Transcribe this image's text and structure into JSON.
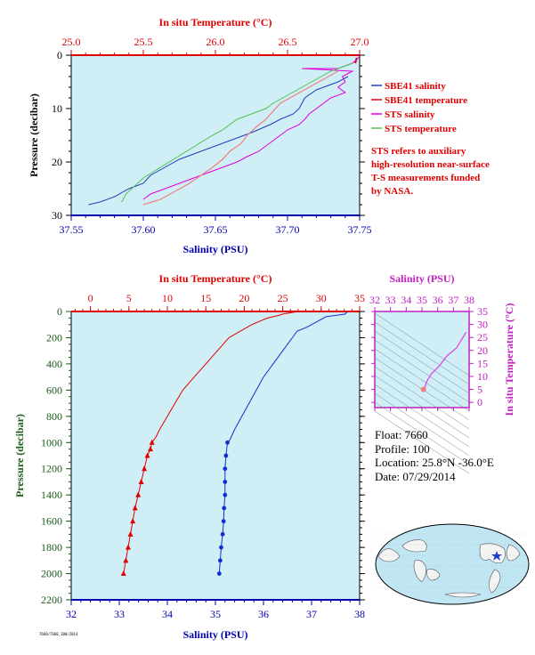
{
  "chart_data": [
    {
      "type": "line",
      "title": "",
      "top_axis": {
        "label": "In situ Temperature (°C)",
        "range": [
          25.0,
          27.0
        ],
        "ticks": [
          "25.0",
          "25.5",
          "26.0",
          "26.5",
          "27.0"
        ],
        "color": "#e00000"
      },
      "bottom_axis": {
        "label": "Salinity (PSU)",
        "range": [
          37.55,
          37.75
        ],
        "ticks": [
          "37.55",
          "37.60",
          "37.65",
          "37.70",
          "37.75"
        ],
        "color": "#0000b0"
      },
      "ylabel": "Pressure (decibar)",
      "ylim": [
        30,
        0
      ],
      "yticks": [
        "0",
        "10",
        "20",
        "30"
      ],
      "legend_position": "right",
      "series": [
        {
          "name": "SBE41 salinity",
          "color": "#1f3fbf",
          "axis": "salinity",
          "points": [
            [
              37.742,
              4
            ],
            [
              37.735,
              5
            ],
            [
              37.72,
              6.5
            ],
            [
              37.712,
              8
            ],
            [
              37.708,
              10
            ],
            [
              37.704,
              11
            ],
            [
              37.695,
              12
            ],
            [
              37.688,
              13
            ],
            [
              37.675,
              14.5
            ],
            [
              37.665,
              15.5
            ],
            [
              37.655,
              16.5
            ],
            [
              37.645,
              17.5
            ],
            [
              37.635,
              18.5
            ],
            [
              37.625,
              19.5
            ],
            [
              37.615,
              21
            ],
            [
              37.605,
              22.5
            ],
            [
              37.6,
              24
            ],
            [
              37.59,
              25
            ],
            [
              37.58,
              26.5
            ],
            [
              37.57,
              27.5
            ],
            [
              37.562,
              28
            ]
          ]
        },
        {
          "name": "SBE41 temperature",
          "color": "#e00000",
          "axis": "temperature",
          "points": [
            [
              26.98,
              0.5
            ],
            [
              26.97,
              1.5
            ]
          ]
        },
        {
          "name": "STS salinity",
          "color": "#e000e0",
          "axis": "salinity",
          "points": [
            [
              37.75,
              0.2
            ],
            [
              37.748,
              0.8
            ],
            [
              37.745,
              1.5
            ],
            [
              37.74,
              2
            ],
            [
              37.735,
              2.5
            ],
            [
              37.71,
              2.5
            ],
            [
              37.745,
              3
            ],
            [
              37.738,
              4
            ],
            [
              37.74,
              5
            ],
            [
              37.735,
              6
            ],
            [
              37.74,
              7
            ],
            [
              37.73,
              8
            ],
            [
              37.725,
              9
            ],
            [
              37.72,
              10
            ],
            [
              37.715,
              11
            ],
            [
              37.712,
              12
            ],
            [
              37.708,
              13
            ],
            [
              37.7,
              14
            ],
            [
              37.695,
              15
            ],
            [
              37.69,
              16
            ],
            [
              37.685,
              17
            ],
            [
              37.68,
              18
            ],
            [
              37.672,
              19
            ],
            [
              37.665,
              20
            ],
            [
              37.655,
              21
            ],
            [
              37.645,
              22
            ],
            [
              37.635,
              23
            ],
            [
              37.625,
              24
            ],
            [
              37.615,
              25
            ],
            [
              37.605,
              26
            ],
            [
              37.6,
              27
            ]
          ]
        },
        {
          "name": "STS temperature",
          "color": "#4ec24e",
          "axis": "salinity",
          "points": [
            [
              37.745,
              1.5
            ],
            [
              37.73,
              3
            ],
            [
              37.72,
              4.5
            ],
            [
              37.71,
              6
            ],
            [
              37.7,
              7.5
            ],
            [
              37.69,
              9
            ],
            [
              37.685,
              10
            ],
            [
              37.675,
              11
            ],
            [
              37.665,
              12
            ],
            [
              37.66,
              13
            ],
            [
              37.655,
              14
            ],
            [
              37.648,
              15
            ],
            [
              37.642,
              16
            ],
            [
              37.636,
              17
            ],
            [
              37.63,
              18
            ],
            [
              37.624,
              19
            ],
            [
              37.618,
              20
            ],
            [
              37.612,
              21
            ],
            [
              37.606,
              22
            ],
            [
              37.6,
              23
            ],
            [
              37.596,
              24
            ],
            [
              37.592,
              25
            ],
            [
              37.588,
              26
            ],
            [
              37.585,
              27.5
            ]
          ]
        }
      ]
    },
    {
      "type": "line",
      "title": "",
      "top_axis": {
        "label": "In situ Temperature (°C)",
        "range": [
          -2.5,
          35
        ],
        "ticks": [
          "0",
          "5",
          "10",
          "15",
          "20",
          "25",
          "30",
          "35"
        ],
        "color": "#e00000"
      },
      "bottom_axis": {
        "label": "Salinity (PSU)",
        "range": [
          32,
          38
        ],
        "ticks": [
          "32",
          "33",
          "34",
          "35",
          "36",
          "37",
          "38"
        ],
        "color": "#0000b0"
      },
      "ylabel": "Pressure (decibar)",
      "ylim": [
        2200,
        0
      ],
      "yticks": [
        "0",
        "200",
        "400",
        "600",
        "800",
        "1000",
        "1200",
        "1400",
        "1600",
        "1800",
        "2000",
        "2200"
      ],
      "series": [
        {
          "name": "temperature",
          "color": "#e00000",
          "axis": "temperature",
          "points": [
            [
              27,
              0
            ],
            [
              26,
              10
            ],
            [
              25,
              20
            ],
            [
              24.5,
              30
            ],
            [
              23,
              50
            ],
            [
              21,
              100
            ],
            [
              19.5,
              150
            ],
            [
              18,
              200
            ],
            [
              16.5,
              300
            ],
            [
              15,
              400
            ],
            [
              13.5,
              500
            ],
            [
              12,
              600
            ],
            [
              11,
              700
            ],
            [
              10,
              800
            ],
            [
              9,
              900
            ],
            [
              8.5,
              960
            ],
            [
              8,
              1000
            ],
            [
              7.8,
              1050
            ],
            [
              7.4,
              1100
            ],
            [
              7,
              1200
            ],
            [
              6.6,
              1300
            ],
            [
              6.2,
              1400
            ],
            [
              5.8,
              1500
            ],
            [
              5.5,
              1600
            ],
            [
              5.2,
              1700
            ],
            [
              4.9,
              1800
            ],
            [
              4.6,
              1900
            ],
            [
              4.3,
              2000
            ]
          ],
          "marker_range": [
            1000,
            2000
          ]
        },
        {
          "name": "salinity",
          "color": "#1030d0",
          "axis": "salinity",
          "points": [
            [
              37.75,
              0
            ],
            [
              37.7,
              20
            ],
            [
              37.3,
              40
            ],
            [
              37.1,
              80
            ],
            [
              36.9,
              120
            ],
            [
              36.7,
              150
            ],
            [
              36.6,
              200
            ],
            [
              36.4,
              300
            ],
            [
              36.2,
              400
            ],
            [
              36.0,
              500
            ],
            [
              35.85,
              600
            ],
            [
              35.7,
              700
            ],
            [
              35.55,
              800
            ],
            [
              35.4,
              900
            ],
            [
              35.3,
              980
            ],
            [
              35.25,
              1000
            ],
            [
              35.22,
              1100
            ],
            [
              35.2,
              1200
            ],
            [
              35.2,
              1300
            ],
            [
              35.2,
              1400
            ],
            [
              35.18,
              1500
            ],
            [
              35.17,
              1600
            ],
            [
              35.15,
              1700
            ],
            [
              35.12,
              1800
            ],
            [
              35.1,
              1900
            ],
            [
              35.08,
              2000
            ]
          ],
          "marker_range": [
            1000,
            2000
          ]
        }
      ]
    },
    {
      "type": "scatter",
      "title": "",
      "top_axis": {
        "label": "Salinity (PSU)",
        "range": [
          32,
          38
        ],
        "ticks": [
          "32",
          "33",
          "34",
          "35",
          "36",
          "37",
          "38"
        ],
        "color": "#c020c0"
      },
      "right_axis": {
        "label": "In situ Temperature (°C)",
        "range": [
          -2,
          35
        ],
        "ticks": [
          "0",
          "5",
          "10",
          "15",
          "20",
          "25",
          "30",
          "35"
        ],
        "color": "#c020c0"
      },
      "series": [
        {
          "name": "T-S",
          "color": "#e040e0",
          "points": [
            [
              37.8,
              27
            ],
            [
              37.2,
              21
            ],
            [
              36.6,
              18
            ],
            [
              36.1,
              14
            ],
            [
              35.6,
              11
            ],
            [
              35.3,
              8
            ],
            [
              35.2,
              6
            ],
            [
              35.1,
              5
            ]
          ]
        }
      ]
    }
  ],
  "info": {
    "float": "Float:  7660",
    "profile": "Profile:  100",
    "location": "Location:  25.8°N  -36.0°E",
    "date": "Date:  07/29/2014"
  },
  "legend": {
    "items": [
      {
        "label": "SBE41 salinity",
        "color": "#1f3fbf"
      },
      {
        "label": "SBE41 temperature",
        "color": "#e00000"
      },
      {
        "label": "STS salinity",
        "color": "#e000e0"
      },
      {
        "label": "STS temperature",
        "color": "#4ec24e"
      }
    ],
    "note": [
      "STS refers to auxiliary",
      "high-resolution near-surface",
      "T-S measurements funded",
      "by NASA."
    ]
  },
  "footer": "7660/7660_100/2014",
  "colors": {
    "plot_bg": "#cfeef5",
    "temp_axis": "#e00000",
    "sal_axis": "#0000b0",
    "ts_axis": "#c020c0",
    "pressure_axis": "#1a5a1a"
  }
}
